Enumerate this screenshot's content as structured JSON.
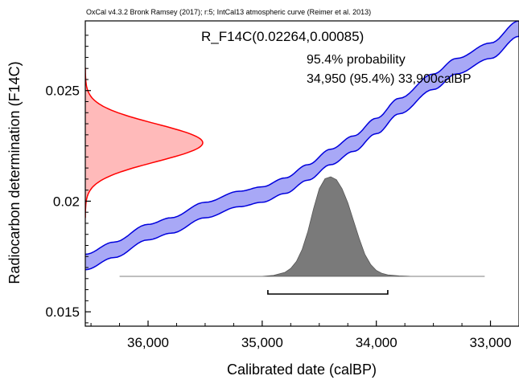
{
  "chart_data": {
    "type": "area",
    "header": "OxCal v4.3.2 Bronk Ramsey (2017); r:5; IntCal13 atmospheric curve (Reimer et al. 2013)",
    "sample_label": "R_F14C(0.02264,0.00085)",
    "probability_label": "95.4% probability",
    "range_label": "34,950 (95.4%) 33,900calBP",
    "xlabel": "Calibrated date (calBP)",
    "ylabel": "Radiocarbon determination (F14C)",
    "x_reversed": true,
    "xlim": [
      36550,
      32750
    ],
    "ylim": [
      0.01435,
      0.02815
    ],
    "x_ticks": [
      36000,
      35000,
      34000,
      33000
    ],
    "x_tick_labels": [
      "36,000",
      "35,000",
      "34,000",
      "33,000"
    ],
    "y_ticks": [
      0.015,
      0.02,
      0.025
    ],
    "y_tick_labels": [
      "0.015",
      "0.02",
      "0.025"
    ],
    "calibration_curve": {
      "name": "IntCal13",
      "color": "#6060ee",
      "edge_color": "#0000dd",
      "x": [
        36550,
        36300,
        36000,
        35800,
        35500,
        35200,
        35000,
        34800,
        34600,
        34400,
        34200,
        34000,
        33800,
        33500,
        33300,
        33000,
        32750
      ],
      "mean": [
        0.01725,
        0.0178,
        0.0186,
        0.0189,
        0.0196,
        0.0201,
        0.0203,
        0.0207,
        0.0213,
        0.022,
        0.0226,
        0.0234,
        0.0243,
        0.0254,
        0.0261,
        0.0268,
        0.0278
      ],
      "half_width": 0.00035
    },
    "measurement": {
      "name": "R_F14C",
      "mean": 0.02264,
      "sigma": 0.00085,
      "color": "#ffb3b3",
      "edge_color": "#ff0000"
    },
    "posterior": {
      "color": "#7a7a7a",
      "x": [
        36250,
        35500,
        35000,
        34900,
        34800,
        34750,
        34700,
        34650,
        34600,
        34550,
        34500,
        34450,
        34400,
        34350,
        34300,
        34250,
        34200,
        34150,
        34100,
        34050,
        34000,
        33950,
        33900,
        33800,
        33700,
        33050
      ],
      "density": [
        0,
        0,
        0,
        0.01,
        0.04,
        0.08,
        0.15,
        0.27,
        0.45,
        0.68,
        0.88,
        0.98,
        1.0,
        0.97,
        0.88,
        0.74,
        0.56,
        0.38,
        0.22,
        0.12,
        0.06,
        0.03,
        0.015,
        0.005,
        0,
        0
      ]
    },
    "range_bar": [
      34950,
      33900
    ],
    "grid": false
  }
}
